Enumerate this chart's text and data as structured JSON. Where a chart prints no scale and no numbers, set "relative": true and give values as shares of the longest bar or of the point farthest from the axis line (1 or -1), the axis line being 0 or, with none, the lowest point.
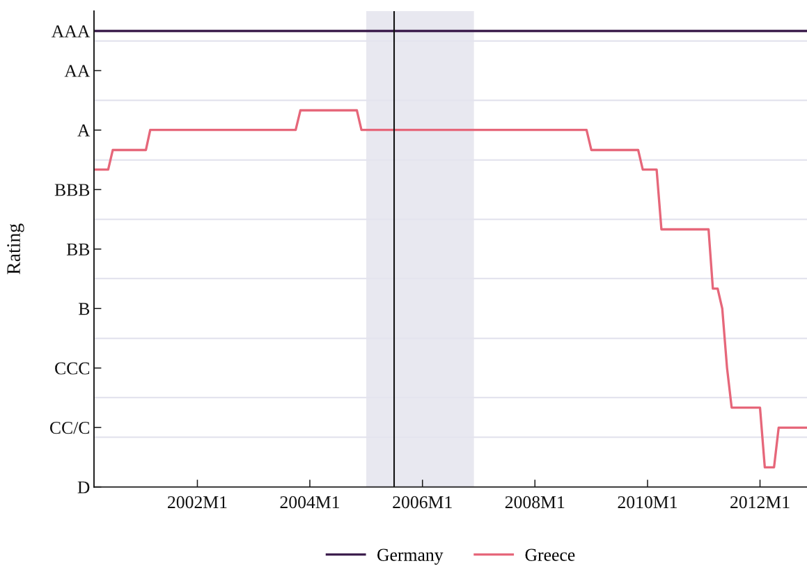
{
  "chart_data": {
    "type": "line",
    "ylabel": "Rating",
    "relative": true,
    "xlim": [
      "2000-03",
      "2012-11"
    ],
    "xticks": [
      {
        "value": "2002-01",
        "label": "2002M1"
      },
      {
        "value": "2004-01",
        "label": "2004M1"
      },
      {
        "value": "2006-01",
        "label": "2006M1"
      },
      {
        "value": "2008-01",
        "label": "2008M1"
      },
      {
        "value": "2010-01",
        "label": "2010M1"
      },
      {
        "value": "2012-01",
        "label": "2012M1"
      }
    ],
    "annotations": [
      "D",
      "CC/C",
      "CCC",
      "B",
      "BB",
      "BBB",
      "A",
      "AA",
      "AAA"
    ],
    "series": [
      {
        "name": "Germany",
        "color": "#3d1f4e",
        "x": [
          "2000-03",
          "2012-11"
        ],
        "values": [
          1,
          1
        ]
      },
      {
        "name": "Greece",
        "color": "#e6677a",
        "x": [
          "2000-03",
          "2000-06",
          "2000-07",
          "2001-02",
          "2001-03",
          "2003-10",
          "2003-11",
          "2004-11",
          "2004-12",
          "2008-12",
          "2009-01",
          "2009-11",
          "2009-12",
          "2010-03",
          "2010-04",
          "2011-02",
          "2011-03",
          "2011-04",
          "2011-05",
          "2011-06",
          "2011-07",
          "2012-01",
          "2012-02",
          "2012-04",
          "2012-05",
          "2012-11"
        ],
        "values": [
          0.696,
          0.696,
          0.739,
          0.739,
          0.783,
          0.783,
          0.826,
          0.826,
          0.783,
          0.783,
          0.739,
          0.739,
          0.696,
          0.696,
          0.565,
          0.565,
          0.435,
          0.435,
          0.391,
          0.261,
          0.174,
          0.174,
          0.043,
          0.043,
          0.13,
          0.13
        ]
      }
    ],
    "ref_lines": [
      {
        "axis": "x",
        "value": "2005-07",
        "color": "#111111"
      },
      {
        "axis": "y",
        "value": 0.109,
        "color": "#e4e4ee"
      },
      {
        "axis": "y",
        "value": 0.196,
        "color": "#e4e4ee"
      },
      {
        "axis": "y",
        "value": 0.326,
        "color": "#e4e4ee"
      },
      {
        "axis": "y",
        "value": 0.457,
        "color": "#e4e4ee"
      },
      {
        "axis": "y",
        "value": 0.587,
        "color": "#e4e4ee"
      },
      {
        "axis": "y",
        "value": 0.717,
        "color": "#e4e4ee"
      },
      {
        "axis": "y",
        "value": 0.848,
        "color": "#e4e4ee"
      },
      {
        "axis": "y",
        "value": 0.978,
        "color": "#e4e4ee"
      }
    ],
    "bands": [
      {
        "axis": "x",
        "from": "2005-01",
        "to": "2006-12",
        "color": "#e8e8f0"
      }
    ],
    "legend": "bottom",
    "marker": "none",
    "line_style": "solid"
  }
}
